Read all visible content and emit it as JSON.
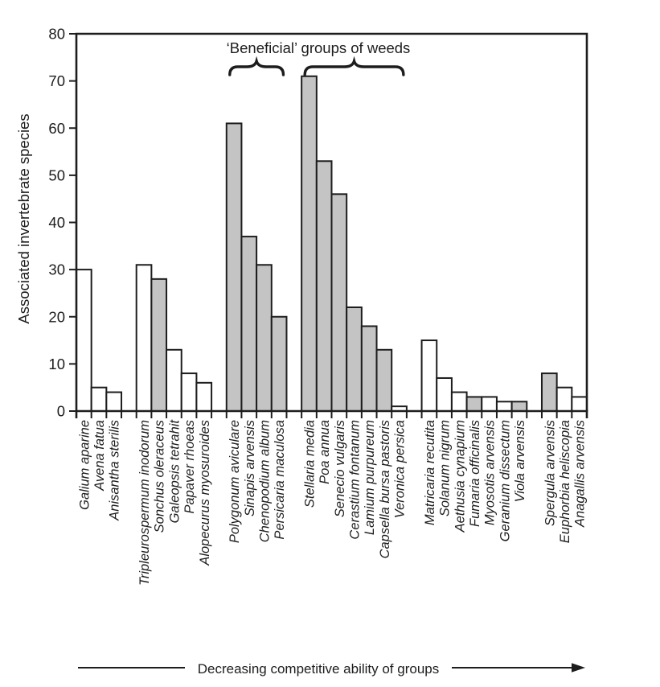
{
  "figure": {
    "title": "‘Beneficial’ groups of weeds",
    "ylabel": "Associated invertebrate species",
    "x_annotation": "Decreasing competitive ability of groups"
  },
  "colors": {
    "bar_gray": "#c4c4c4",
    "bar_white": "#ffffff",
    "stroke": "#1d1d1d",
    "background": "#ffffff"
  },
  "chart_data": {
    "type": "bar",
    "title": "‘Beneficial’ groups of weeds",
    "ylabel": "Associated invertebrate species",
    "x_annotation": "Decreasing competitive ability of groups",
    "ylim": [
      0,
      80
    ],
    "yticks": [
      0,
      10,
      20,
      30,
      40,
      50,
      60,
      70,
      80
    ],
    "grid": "off",
    "legend": "none",
    "bar_fills": {
      "gray": "#c4c4c4",
      "white": "#ffffff"
    },
    "beneficial_brace_group_indices": [
      2,
      3
    ],
    "groups": [
      {
        "name": "group-1",
        "beneficial": false,
        "bars": [
          {
            "label": "Galium aparine",
            "value": 30,
            "fill": "white"
          },
          {
            "label": "Avena fatua",
            "value": 5,
            "fill": "white"
          },
          {
            "label": "Anisantha sterilis",
            "value": 4,
            "fill": "white"
          }
        ]
      },
      {
        "name": "group-2",
        "beneficial": false,
        "bars": [
          {
            "label": "Tripleurospermum inodorum",
            "value": 31,
            "fill": "white"
          },
          {
            "label": "Sonchus oleraceus",
            "value": 28,
            "fill": "gray"
          },
          {
            "label": "Galeopsis tetrahit",
            "value": 13,
            "fill": "white"
          },
          {
            "label": "Papaver rhoeas",
            "value": 8,
            "fill": "white"
          },
          {
            "label": "Alopecurus myosuroides",
            "value": 6,
            "fill": "white"
          }
        ]
      },
      {
        "name": "group-3",
        "beneficial": true,
        "bars": [
          {
            "label": "Polygonum aviculare",
            "value": 61,
            "fill": "gray"
          },
          {
            "label": "Sinapis arvensis",
            "value": 37,
            "fill": "gray"
          },
          {
            "label": "Chenopodium album",
            "value": 31,
            "fill": "gray"
          },
          {
            "label": "Persicaria maculosa",
            "value": 20,
            "fill": "gray"
          }
        ]
      },
      {
        "name": "group-4",
        "beneficial": true,
        "bars": [
          {
            "label": "Stellaria media",
            "value": 71,
            "fill": "gray"
          },
          {
            "label": "Poa annua",
            "value": 53,
            "fill": "gray"
          },
          {
            "label": "Senecio vulgaris",
            "value": 46,
            "fill": "gray"
          },
          {
            "label": "Cerastium fontanum",
            "value": 22,
            "fill": "gray"
          },
          {
            "label": "Lamium purpureum",
            "value": 18,
            "fill": "gray"
          },
          {
            "label": "Capsella bursa pastoris",
            "value": 13,
            "fill": "gray"
          },
          {
            "label": "Veronica persica",
            "value": 1,
            "fill": "white"
          }
        ]
      },
      {
        "name": "group-5",
        "beneficial": false,
        "bars": [
          {
            "label": "Matricaria recutita",
            "value": 15,
            "fill": "white"
          },
          {
            "label": "Solanum nigrum",
            "value": 7,
            "fill": "white"
          },
          {
            "label": "Aethusia cynapium",
            "value": 4,
            "fill": "white"
          },
          {
            "label": "Fumaria officinalis",
            "value": 3,
            "fill": "gray"
          },
          {
            "label": "Myosotis arvensis",
            "value": 3,
            "fill": "white"
          },
          {
            "label": "Geranium dissectum",
            "value": 2,
            "fill": "white"
          },
          {
            "label": "Viola arvensis",
            "value": 2,
            "fill": "gray"
          }
        ]
      },
      {
        "name": "group-6",
        "beneficial": false,
        "bars": [
          {
            "label": "Spergula arvensis",
            "value": 8,
            "fill": "gray"
          },
          {
            "label": "Euphorbia heliscopia",
            "value": 5,
            "fill": "white"
          },
          {
            "label": "Anagallis arvensis",
            "value": 3,
            "fill": "white"
          }
        ]
      }
    ]
  }
}
